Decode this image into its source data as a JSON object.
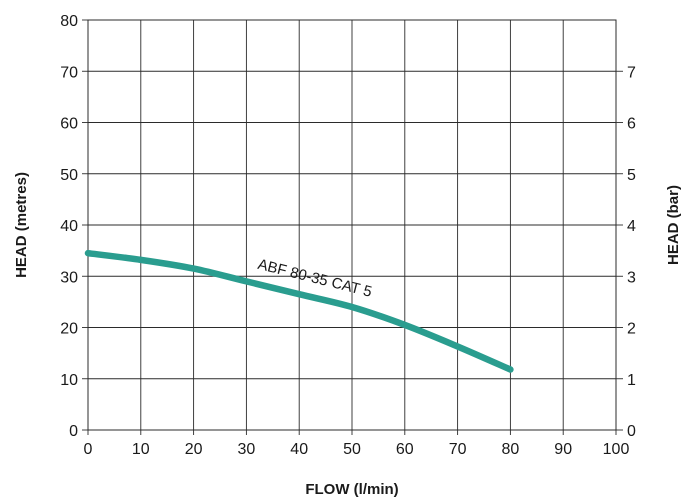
{
  "chart_data": {
    "type": "line",
    "title": "",
    "xlabel": "FLOW (l/min)",
    "ylabel": "HEAD (metres)",
    "y2label": "HEAD (bar)",
    "xlim": [
      0,
      100
    ],
    "ylim": [
      0,
      80
    ],
    "y2lim": [
      0,
      8
    ],
    "x_ticks": [
      "0",
      "10",
      "20",
      "30",
      "40",
      "50",
      "60",
      "70",
      "80",
      "90",
      "100"
    ],
    "y_ticks": [
      "0",
      "10",
      "20",
      "30",
      "40",
      "50",
      "60",
      "70",
      "80"
    ],
    "y2_ticks": [
      "0",
      "1",
      "2",
      "3",
      "4",
      "5",
      "6",
      "7"
    ],
    "grid": true,
    "series": [
      {
        "name": "ABF 80-35 CAT 5",
        "color": "#2a9d8f",
        "x": [
          0,
          10,
          20,
          30,
          40,
          50,
          60,
          70,
          80
        ],
        "y": [
          34.5,
          33.2,
          31.5,
          29.0,
          26.5,
          24.0,
          20.5,
          16.3,
          11.8
        ]
      }
    ],
    "annotations": [
      {
        "text": "ABF 80-35 CAT 5",
        "x": 32,
        "y": 31.5
      }
    ]
  }
}
